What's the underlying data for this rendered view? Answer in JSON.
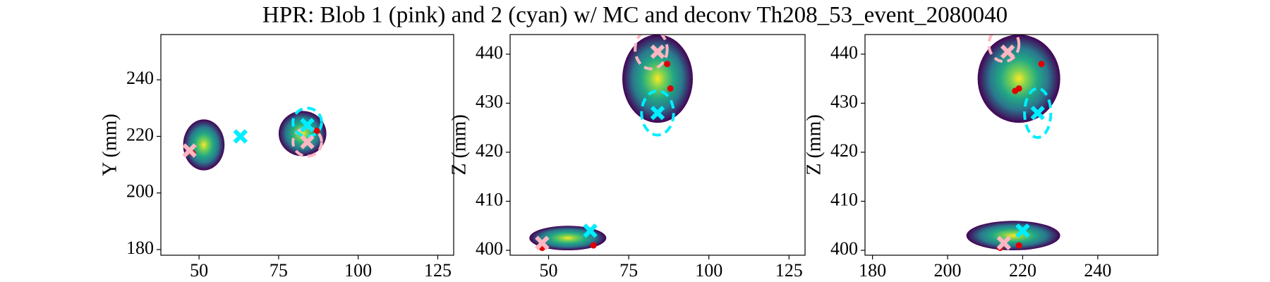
{
  "title": "HPR: Blob 1 (pink) and 2 (cyan) w/ MC and deconv Th208_53_event_2080040",
  "chart_data": [
    {
      "type": "scatter",
      "ylabel": "Y (mm)",
      "xlim": [
        38,
        130
      ],
      "ylim": [
        178,
        256
      ],
      "xticks": [
        50,
        75,
        100,
        125
      ],
      "yticks": [
        180,
        200,
        220,
        240
      ],
      "clusters": [
        {
          "x": [
            45,
            58
          ],
          "y": [
            208,
            226
          ]
        },
        {
          "x": [
            75,
            90
          ],
          "y": [
            213,
            229
          ]
        }
      ],
      "ellipses": [
        {
          "color": "#ffb6c1",
          "cx": 84,
          "cy": 218,
          "rx": 4.5,
          "ry": 5
        },
        {
          "color": "#00eeff",
          "cx": 84,
          "cy": 225,
          "rx": 4.5,
          "ry": 5
        }
      ],
      "series": [
        {
          "color": "#e00000",
          "marker": "dot",
          "x": [
            48,
            87
          ],
          "y": [
            214,
            222
          ]
        },
        {
          "color": "#ffb6c1",
          "marker": "x",
          "x": [
            47,
            84
          ],
          "y": [
            215,
            218
          ]
        },
        {
          "color": "#00eeff",
          "marker": "x",
          "x": [
            63,
            84
          ],
          "y": [
            220,
            224
          ]
        }
      ]
    },
    {
      "type": "scatter",
      "ylabel": "Z (mm)",
      "xlim": [
        38,
        130
      ],
      "ylim": [
        399,
        444
      ],
      "xticks": [
        50,
        75,
        100,
        125
      ],
      "yticks": [
        400,
        410,
        420,
        430,
        440
      ],
      "clusters": [
        {
          "x": [
            73,
            95
          ],
          "y": [
            426,
            444
          ]
        },
        {
          "x": [
            44,
            68
          ],
          "y": [
            400,
            405
          ]
        }
      ],
      "ellipses": [
        {
          "color": "#ffb6c1",
          "cx": 82,
          "cy": 441,
          "rx": 5,
          "ry": 4
        },
        {
          "color": "#00eeff",
          "cx": 84,
          "cy": 428,
          "rx": 5,
          "ry": 4.5
        }
      ],
      "series": [
        {
          "color": "#e00000",
          "marker": "dot",
          "x": [
            88,
            87,
            48,
            64
          ],
          "y": [
            433,
            438,
            400.5,
            401
          ]
        },
        {
          "color": "#ffb6c1",
          "marker": "x",
          "x": [
            84,
            48
          ],
          "y": [
            440.5,
            401.5
          ]
        },
        {
          "color": "#00eeff",
          "marker": "x",
          "x": [
            84,
            63
          ],
          "y": [
            428,
            404
          ]
        }
      ]
    },
    {
      "type": "scatter",
      "ylabel": "Z (mm)",
      "xlim": [
        178,
        256
      ],
      "ylim": [
        399,
        444
      ],
      "xticks": [
        180,
        200,
        220,
        240
      ],
      "yticks": [
        400,
        410,
        420,
        430,
        440
      ],
      "clusters": [
        {
          "x": [
            208,
            230
          ],
          "y": [
            426,
            444
          ]
        },
        {
          "x": [
            205,
            230
          ],
          "y": [
            400,
            406
          ]
        }
      ],
      "ellipses": [
        {
          "color": "#ffb6c1",
          "cx": 215,
          "cy": 442,
          "rx": 4,
          "ry": 3.5
        },
        {
          "color": "#00eeff",
          "cx": 224,
          "cy": 428,
          "rx": 3.5,
          "ry": 5
        }
      ],
      "series": [
        {
          "color": "#e00000",
          "marker": "dot",
          "x": [
            225,
            219,
            218,
            214,
            219
          ],
          "y": [
            438,
            433,
            432.5,
            400.5,
            401
          ]
        },
        {
          "color": "#ffb6c1",
          "marker": "x",
          "x": [
            216,
            215
          ],
          "y": [
            440.5,
            401.5
          ]
        },
        {
          "color": "#00eeff",
          "marker": "x",
          "x": [
            224,
            220
          ],
          "y": [
            428,
            404
          ]
        }
      ]
    }
  ]
}
